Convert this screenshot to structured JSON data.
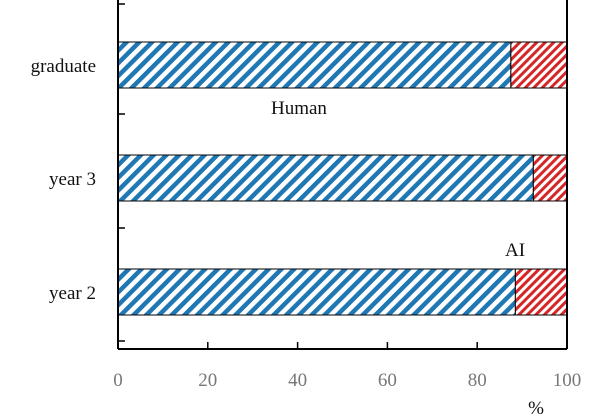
{
  "chart_data": {
    "type": "bar",
    "orientation": "horizontal",
    "stacked": true,
    "categories": [
      "graduate",
      "year 3",
      "year 2"
    ],
    "series": [
      {
        "name": "Human",
        "values": [
          87.5,
          92.5,
          88.5
        ],
        "color": "#1f77b4",
        "pattern": "diagonal-hatch"
      },
      {
        "name": "AI",
        "values": [
          12.5,
          7.5,
          11.5
        ],
        "color": "#d62728",
        "pattern": "diagonal-hatch"
      }
    ],
    "xlim": [
      0,
      100
    ],
    "xticks": [
      "0",
      "20",
      "40",
      "60",
      "80",
      "100"
    ],
    "xlabel": "%",
    "ylabel": "",
    "title": "",
    "grid": false,
    "legend": "none"
  }
}
